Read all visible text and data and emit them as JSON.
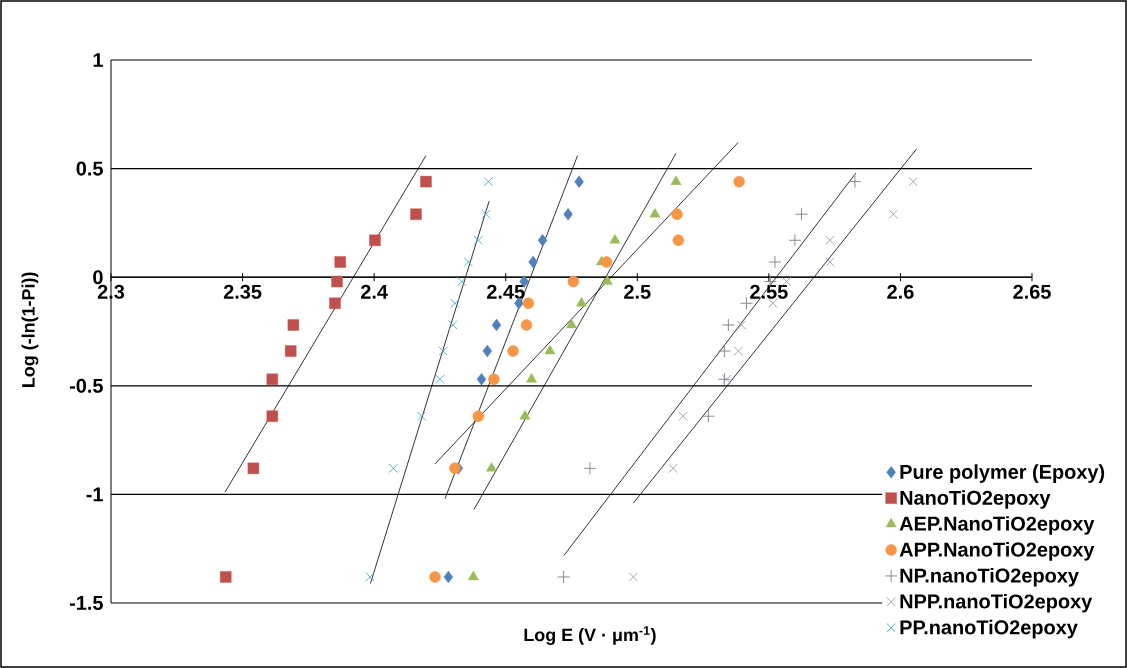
{
  "chart_data": {
    "type": "scatter",
    "xlabel": "Log E (V · μm$^{-1}$)",
    "ylabel": "Log (-ln(1-Pi))",
    "xlim": [
      2.3,
      2.65
    ],
    "xticks": [
      2.3,
      2.35,
      2.4,
      2.45,
      2.5,
      2.55,
      2.6,
      2.65
    ],
    "ylim": [
      -1.5,
      1
    ],
    "yticks": [
      -1.5,
      -1,
      -0.5,
      0,
      0.5,
      1
    ],
    "grid": "y",
    "legend": "bottom right",
    "series": [
      {
        "name": "Pure polymer (Epoxy)",
        "color": "#4f81bd",
        "marker": "diamond",
        "x": [
          2.4779,
          2.4737,
          2.464,
          2.4604,
          2.457,
          2.455,
          2.4465,
          2.443,
          2.4408,
          2.432,
          2.4282
        ],
        "values": [
          0.44,
          0.29,
          0.17,
          0.07,
          -0.02,
          -0.12,
          -0.22,
          -0.34,
          -0.47,
          -0.88,
          -1.38
        ]
      },
      {
        "name": "NanoTiO2epoxy",
        "color": "#c0504d",
        "marker": "square",
        "x": [
          2.4197,
          2.4159,
          2.4003,
          2.3871,
          2.3859,
          2.3851,
          2.3693,
          2.3683,
          2.3613,
          2.3613,
          2.3541,
          2.3436
        ],
        "values": [
          0.44,
          0.29,
          0.17,
          0.07,
          -0.02,
          -0.12,
          -0.22,
          -0.34,
          -0.47,
          -0.64,
          -0.88,
          -1.38
        ]
      },
      {
        "name": "AEP.NanoTiO2epoxy",
        "color": "#9bbb59",
        "marker": "triangle",
        "x": [
          2.5147,
          2.5067,
          2.4915,
          2.4864,
          2.4886,
          2.4788,
          2.475,
          2.4668,
          2.4598,
          2.4573,
          2.4446,
          2.4377
        ],
        "values": [
          0.44,
          0.29,
          0.17,
          0.07,
          -0.02,
          -0.12,
          -0.22,
          -0.34,
          -0.47,
          -0.64,
          -0.88,
          -1.38
        ]
      },
      {
        "name": "APP.NanoTiO2epoxy",
        "color": "#f79646",
        "marker": "circle",
        "x": [
          2.5387,
          2.5151,
          2.5156,
          2.4883,
          2.4757,
          2.4586,
          2.4579,
          2.4528,
          2.4455,
          2.4396,
          2.4307,
          2.4231
        ],
        "values": [
          0.44,
          0.29,
          0.17,
          0.07,
          -0.02,
          -0.12,
          -0.22,
          -0.34,
          -0.47,
          -0.64,
          -0.88,
          -1.38
        ]
      },
      {
        "name": "NP.nanoTiO2epoxy",
        "color": "#7f7f7f",
        "marker": "plus",
        "x": [
          2.5827,
          2.5624,
          2.5599,
          2.5523,
          2.5505,
          2.5415,
          2.5346,
          2.5331,
          2.5331,
          2.527,
          2.482,
          2.472
        ],
        "values": [
          0.44,
          0.29,
          0.17,
          0.07,
          -0.02,
          -0.12,
          -0.22,
          -0.34,
          -0.47,
          -0.64,
          -0.88,
          -1.38
        ]
      },
      {
        "name": "NPP.nanoTiO2epoxy",
        "color": "#9a9ab4",
        "marker": "cross",
        "x": [
          2.6048,
          2.5973,
          2.5732,
          2.5732,
          2.5567,
          2.5515,
          2.5396,
          2.5384,
          2.5339,
          2.5174,
          2.5136,
          2.4985
        ],
        "values": [
          0.44,
          0.29,
          0.17,
          0.07,
          -0.02,
          -0.12,
          -0.22,
          -0.34,
          -0.47,
          -0.64,
          -0.88,
          -1.38
        ]
      },
      {
        "name": "PP.nanoTiO2epoxy",
        "color": "#4bacc6",
        "marker": "cross",
        "x": [
          2.4434,
          2.4425,
          2.4396,
          2.4358,
          2.4333,
          2.4307,
          2.4299,
          2.4262,
          2.425,
          2.418,
          2.4073,
          2.3984
        ],
        "values": [
          0.44,
          0.29,
          0.17,
          0.07,
          -0.02,
          -0.12,
          -0.22,
          -0.34,
          -0.47,
          -0.64,
          -0.88,
          -1.38
        ]
      },
      {
        "type": "line",
        "color": "#000000",
        "x": [
          2.4269,
          2.4773
        ],
        "values": [
          -1.02,
          0.56
        ]
      },
      {
        "type": "line",
        "color": "#000000",
        "x": [
          2.3433,
          2.4197
        ],
        "values": [
          -0.99,
          0.56
        ]
      },
      {
        "type": "line",
        "color": "#000000",
        "x": [
          2.4379,
          2.5147
        ],
        "values": [
          -1.07,
          0.57
        ]
      },
      {
        "type": "line",
        "color": "#000000",
        "x": [
          2.4231,
          2.5383
        ],
        "values": [
          -0.86,
          0.62
        ]
      },
      {
        "type": "line",
        "color": "#000000",
        "x": [
          2.4722,
          2.5831
        ],
        "values": [
          -1.28,
          0.48
        ]
      },
      {
        "type": "line",
        "color": "#000000",
        "x": [
          2.4985,
          2.6061
        ],
        "values": [
          -1.04,
          0.59
        ]
      },
      {
        "type": "line",
        "color": "#000000",
        "x": [
          2.3986,
          2.4437
        ],
        "values": [
          -1.41,
          0.35
        ]
      }
    ]
  }
}
